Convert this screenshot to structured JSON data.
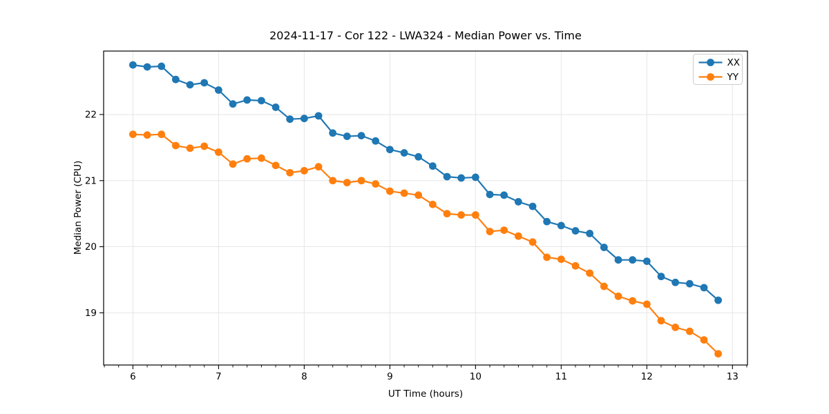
{
  "page": {
    "background": "#ffffff"
  },
  "chart_data": {
    "type": "line",
    "title": "2024-11-17 - Cor 122 - LWA324 - Median Power vs. Time",
    "xlabel": "UT Time (hours)",
    "ylabel": "Median Power (CPU)",
    "xlim": [
      5.658,
      13.175
    ],
    "ylim": [
      18.21,
      22.96
    ],
    "xticks": [
      6,
      7,
      8,
      9,
      10,
      11,
      12,
      13
    ],
    "yticks": [
      19,
      20,
      21,
      22
    ],
    "x_minor_step": 0.16667,
    "grid": true,
    "grid_color": "#e6e6e6",
    "axes_color": "#000000",
    "legend": {
      "position": "upper right"
    },
    "series": [
      {
        "name": "XX",
        "color": "#1f77b4",
        "marker": "circle",
        "x": [
          6.0,
          6.167,
          6.333,
          6.5,
          6.667,
          6.833,
          7.0,
          7.167,
          7.333,
          7.5,
          7.667,
          7.833,
          8.0,
          8.167,
          8.333,
          8.5,
          8.667,
          8.833,
          9.0,
          9.167,
          9.333,
          9.5,
          9.667,
          9.833,
          10.0,
          10.167,
          10.333,
          10.5,
          10.667,
          10.833,
          11.0,
          11.167,
          11.333,
          11.5,
          11.667,
          11.833,
          12.0,
          12.167,
          12.333,
          12.5,
          12.667,
          12.833
        ],
        "y": [
          22.75,
          22.72,
          22.73,
          22.53,
          22.45,
          22.48,
          22.37,
          22.16,
          22.22,
          22.21,
          22.11,
          21.93,
          21.94,
          21.98,
          21.72,
          21.67,
          21.68,
          21.6,
          21.47,
          21.42,
          21.36,
          21.22,
          21.06,
          21.04,
          21.05,
          20.79,
          20.78,
          20.68,
          20.61,
          20.38,
          20.32,
          20.24,
          20.2,
          19.99,
          19.8,
          19.8,
          19.78,
          19.55,
          19.46,
          19.44,
          19.38,
          19.19
        ]
      },
      {
        "name": "YY",
        "color": "#ff7f0e",
        "marker": "circle",
        "x": [
          6.0,
          6.167,
          6.333,
          6.5,
          6.667,
          6.833,
          7.0,
          7.167,
          7.333,
          7.5,
          7.667,
          7.833,
          8.0,
          8.167,
          8.333,
          8.5,
          8.667,
          8.833,
          9.0,
          9.167,
          9.333,
          9.5,
          9.667,
          9.833,
          10.0,
          10.167,
          10.333,
          10.5,
          10.667,
          10.833,
          11.0,
          11.167,
          11.333,
          11.5,
          11.667,
          11.833,
          12.0,
          12.167,
          12.333,
          12.5,
          12.667,
          12.833
        ],
        "y": [
          21.7,
          21.69,
          21.7,
          21.53,
          21.49,
          21.52,
          21.43,
          21.25,
          21.33,
          21.34,
          21.23,
          21.12,
          21.15,
          21.21,
          21.0,
          20.97,
          21.0,
          20.95,
          20.84,
          20.81,
          20.78,
          20.64,
          20.5,
          20.48,
          20.48,
          20.23,
          20.25,
          20.16,
          20.07,
          19.84,
          19.81,
          19.71,
          19.6,
          19.4,
          19.25,
          19.18,
          19.13,
          18.88,
          18.78,
          18.72,
          18.59,
          18.38
        ]
      }
    ]
  }
}
